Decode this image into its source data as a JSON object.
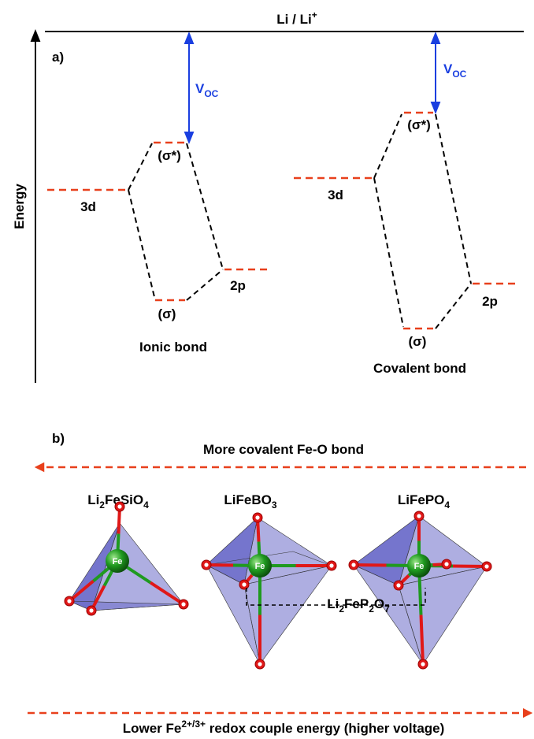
{
  "panel_a": {
    "label": "a)",
    "axis_label": "Energy",
    "reference": {
      "parts": [
        {
          "t": "Li / Li"
        },
        {
          "sup": "+"
        }
      ]
    },
    "voltage_label": {
      "parts": [
        {
          "t": "V"
        },
        {
          "sub": "OC"
        }
      ]
    },
    "ionic": {
      "title": "Ionic bond",
      "d": "3d",
      "p": "2p",
      "antibonding": "(σ*)",
      "bonding": "(σ)"
    },
    "covalent": {
      "title": "Covalent bond",
      "d": "3d",
      "p": "2p",
      "antibonding": "(σ*)",
      "bonding": "(σ)"
    }
  },
  "panel_b": {
    "label": "b)",
    "top_arrow": "More covalent Fe-O bond",
    "atom_label": "Fe",
    "compounds": [
      {
        "parts": [
          {
            "t": "Li"
          },
          {
            "sub": "2"
          },
          {
            "t": "FeSiO"
          },
          {
            "sub": "4"
          }
        ]
      },
      {
        "parts": [
          {
            "t": "LiFeBO"
          },
          {
            "sub": "3"
          }
        ]
      },
      {
        "parts": [
          {
            "t": "LiFePO"
          },
          {
            "sub": "4"
          }
        ]
      },
      {
        "parts": [
          {
            "t": "Li"
          },
          {
            "sub": "2"
          },
          {
            "t": "FeP"
          },
          {
            "sub": "2"
          },
          {
            "t": "O"
          },
          {
            "sub": "7"
          }
        ]
      }
    ],
    "bottom_arrow": {
      "parts": [
        {
          "t": "Lower Fe"
        },
        {
          "sup": "2+/3+"
        },
        {
          "t": " redox couple energy (higher voltage)"
        }
      ]
    }
  }
}
